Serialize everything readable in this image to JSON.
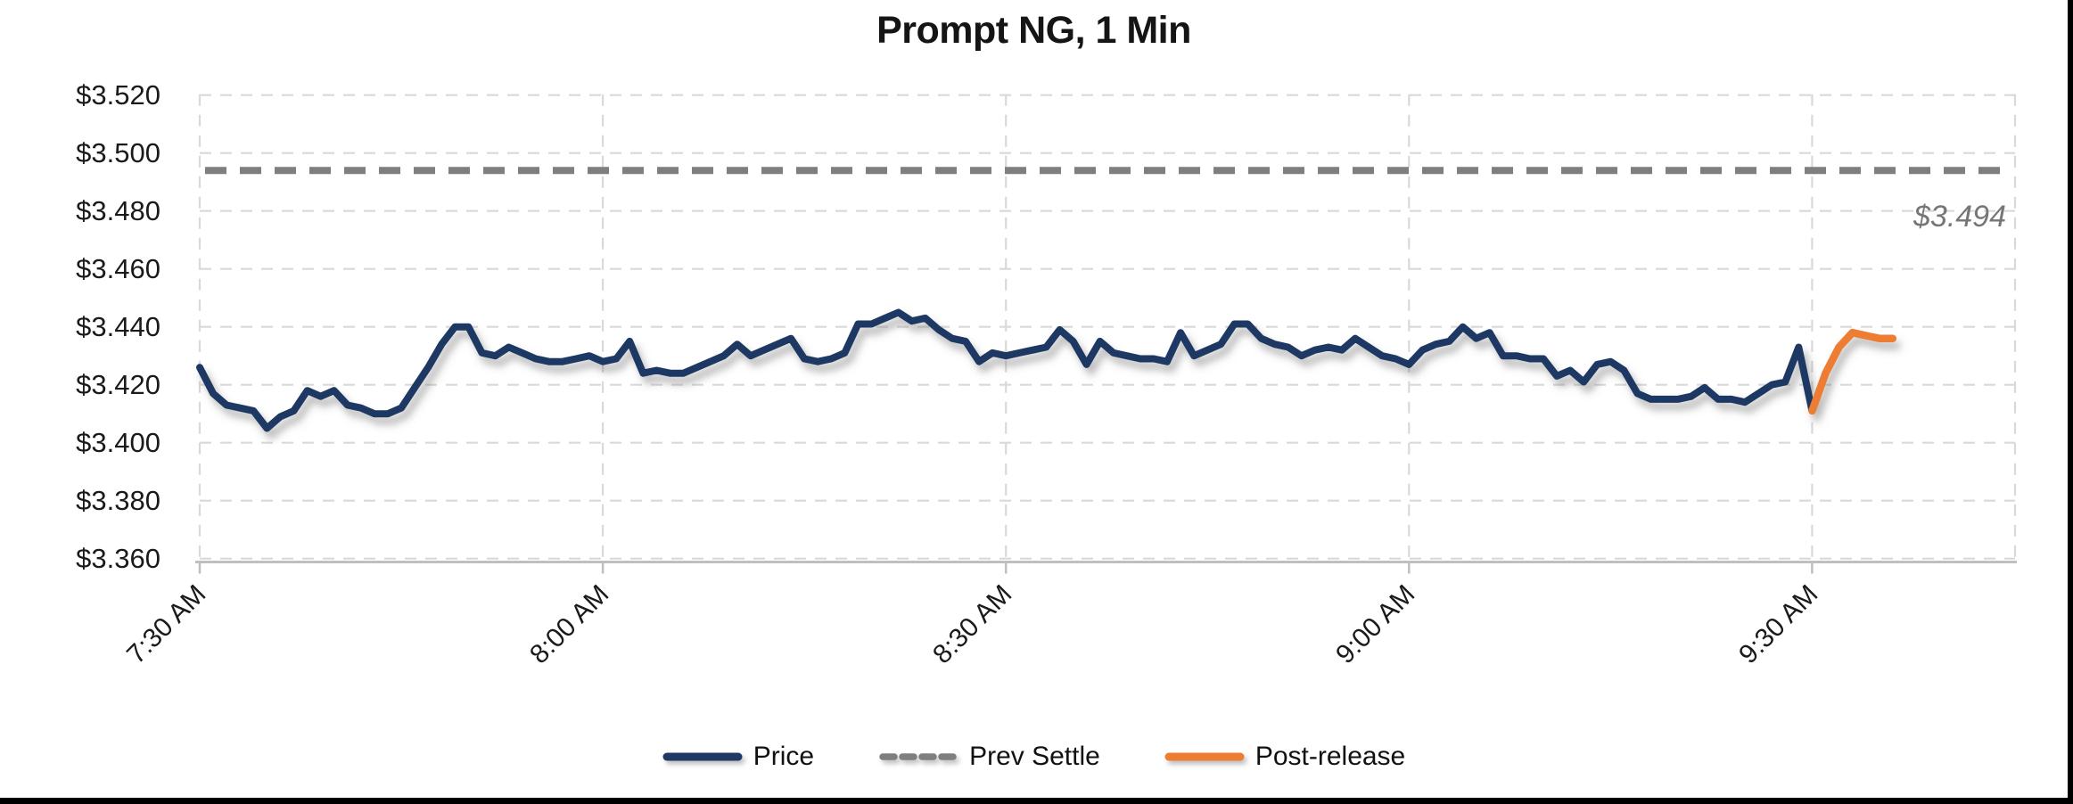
{
  "chart": {
    "title": "Prompt NG, 1 Min",
    "prev_settle_label": "$3.494"
  },
  "chart_data": {
    "type": "line",
    "title": "Prompt NG, 1 Min",
    "xlabel": "",
    "ylabel": "",
    "x_axis": {
      "start": "7:30 AM",
      "end": "approx 9:45 AM",
      "points_interval_minutes": 1,
      "tick_interval_minutes": 30,
      "ticks": [
        {
          "label": "7:30 AM",
          "minute": 0
        },
        {
          "label": "8:00 AM",
          "minute": 30
        },
        {
          "label": "8:30 AM",
          "minute": 60
        },
        {
          "label": "9:00 AM",
          "minute": 90
        },
        {
          "label": "9:30 AM",
          "minute": 120
        }
      ],
      "label_rotation_deg": 45
    },
    "y_axis": {
      "ylim": [
        3.36,
        3.52
      ],
      "tick_step": 0.02,
      "ticks": [
        {
          "label": "$3.520",
          "value": 3.52
        },
        {
          "label": "$3.500",
          "value": 3.5
        },
        {
          "label": "$3.480",
          "value": 3.48
        },
        {
          "label": "$3.460",
          "value": 3.46
        },
        {
          "label": "$3.440",
          "value": 3.44
        },
        {
          "label": "$3.420",
          "value": 3.42
        },
        {
          "label": "$3.400",
          "value": 3.4
        },
        {
          "label": "$3.380",
          "value": 3.38
        },
        {
          "label": "$3.360",
          "value": 3.36
        }
      ]
    },
    "grid": {
      "visible": true,
      "style": "dashed",
      "color": "#d9d9d9"
    },
    "axis_line_color": "#bfbfbf",
    "legend": {
      "position": "bottom",
      "entries": [
        {
          "label": "Price",
          "color": "#1f3864",
          "style": "solid"
        },
        {
          "label": "Prev Settle",
          "color": "#7f7f7f",
          "style": "dashed"
        },
        {
          "label": "Post-release",
          "color": "#ed7d31",
          "style": "solid"
        }
      ]
    },
    "series": [
      {
        "name": "Price",
        "color": "#1f3864",
        "style": "solid",
        "start_minute": 0,
        "values": [
          3.426,
          3.417,
          3.413,
          3.412,
          3.411,
          3.405,
          3.409,
          3.411,
          3.418,
          3.416,
          3.418,
          3.413,
          3.412,
          3.41,
          3.41,
          3.412,
          3.419,
          3.426,
          3.434,
          3.44,
          3.44,
          3.431,
          3.43,
          3.433,
          3.431,
          3.429,
          3.428,
          3.428,
          3.429,
          3.43,
          3.428,
          3.429,
          3.435,
          3.424,
          3.425,
          3.424,
          3.424,
          3.426,
          3.428,
          3.43,
          3.434,
          3.43,
          3.432,
          3.434,
          3.436,
          3.429,
          3.428,
          3.429,
          3.431,
          3.441,
          3.441,
          3.443,
          3.445,
          3.442,
          3.443,
          3.439,
          3.436,
          3.435,
          3.428,
          3.431,
          3.43,
          3.431,
          3.432,
          3.433,
          3.439,
          3.435,
          3.427,
          3.435,
          3.431,
          3.43,
          3.429,
          3.429,
          3.428,
          3.438,
          3.43,
          3.432,
          3.434,
          3.441,
          3.441,
          3.436,
          3.434,
          3.433,
          3.43,
          3.432,
          3.433,
          3.432,
          3.436,
          3.433,
          3.43,
          3.429,
          3.427,
          3.432,
          3.434,
          3.435,
          3.44,
          3.436,
          3.438,
          3.43,
          3.43,
          3.429,
          3.429,
          3.423,
          3.425,
          3.421,
          3.427,
          3.428,
          3.425,
          3.417,
          3.415,
          3.415,
          3.415,
          3.416,
          3.419,
          3.415,
          3.415,
          3.414,
          3.417,
          3.42,
          3.421,
          3.433,
          3.411
        ]
      },
      {
        "name": "Prev Settle",
        "color": "#7f7f7f",
        "style": "dashed",
        "value": 3.494,
        "annotation": "$3.494"
      },
      {
        "name": "Post-release",
        "color": "#ed7d31",
        "style": "solid",
        "start_minute": 120,
        "values": [
          3.411,
          3.424,
          3.433,
          3.438,
          3.437,
          3.436,
          3.436
        ]
      }
    ]
  }
}
